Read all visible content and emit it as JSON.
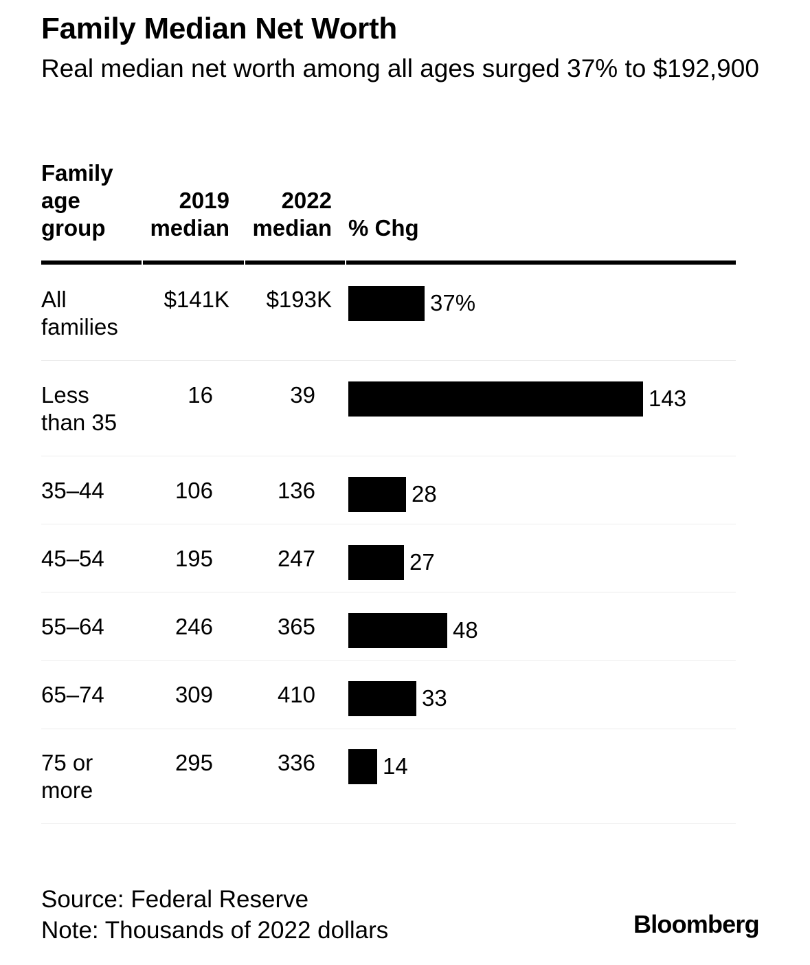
{
  "chart_data": {
    "type": "table",
    "title": "Family Median Net Worth",
    "subtitle": "Real median net worth among all ages surged 37% to $192,900",
    "columns": [
      "Family age group",
      "2019 median",
      "2022 median",
      "% Chg"
    ],
    "rows": [
      {
        "group": "All families",
        "median_2019": "$141K",
        "median_2022": "$193K",
        "pct_chg": 37,
        "pct_label": "37%"
      },
      {
        "group": "Less than 35",
        "median_2019": "16",
        "median_2022": "39",
        "pct_chg": 143,
        "pct_label": "143"
      },
      {
        "group": "35–44",
        "median_2019": "106",
        "median_2022": "136",
        "pct_chg": 28,
        "pct_label": "28"
      },
      {
        "group": "45–54",
        "median_2019": "195",
        "median_2022": "247",
        "pct_chg": 27,
        "pct_label": "27"
      },
      {
        "group": "55–64",
        "median_2019": "246",
        "median_2022": "365",
        "pct_chg": 48,
        "pct_label": "48"
      },
      {
        "group": "65–74",
        "median_2019": "309",
        "median_2022": "410",
        "pct_chg": 33,
        "pct_label": "33"
      },
      {
        "group": "75 or more",
        "median_2019": "295",
        "median_2022": "336",
        "pct_chg": 14,
        "pct_label": "14"
      }
    ],
    "bar_color": "#000000",
    "source": "Source: Federal Reserve",
    "note": "Note: Thousands of 2022 dollars"
  },
  "brand": "Bloomberg"
}
